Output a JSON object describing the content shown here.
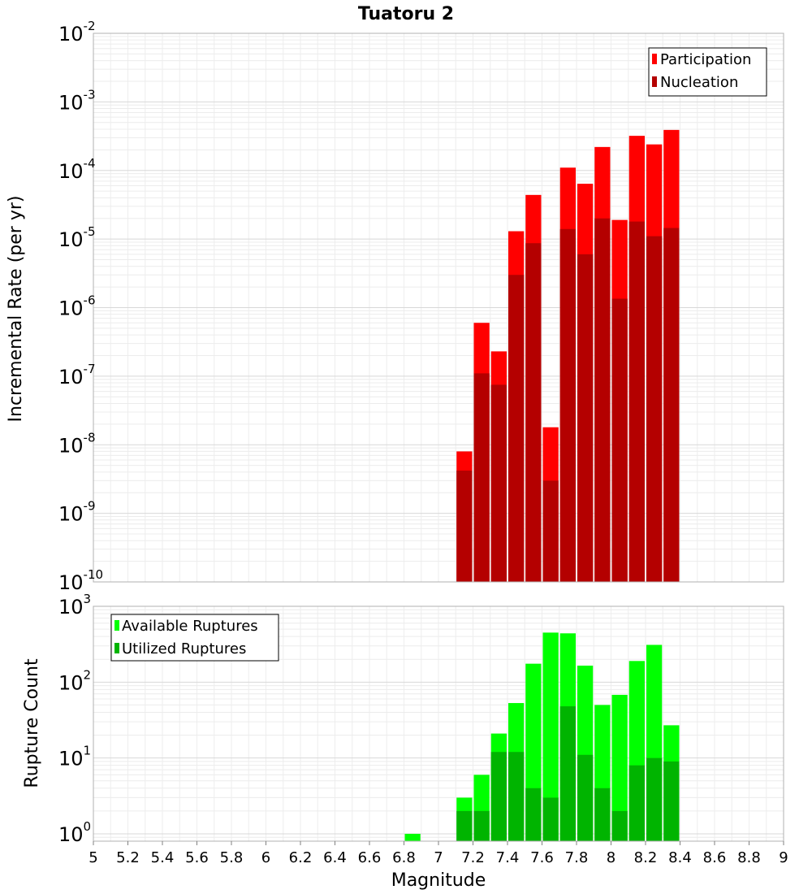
{
  "chart_data": [
    {
      "type": "bar",
      "title": "Tuatoru 2",
      "ylabel": "Incremental Rate (per yr)",
      "xlabel": "",
      "y_scale": "log",
      "ylim": [
        1e-10,
        0.01
      ],
      "xlim": [
        5,
        9
      ],
      "y_tick_labels": [
        "10^-10",
        "10^-9",
        "10^-8",
        "10^-7",
        "10^-6",
        "10^-5",
        "10^-4",
        "10^-3",
        "10^-2"
      ],
      "legend": {
        "placement": "top-right",
        "entries": [
          "Participation",
          "Nucleation"
        ]
      },
      "colors": {
        "Participation": "#ff0000",
        "Nucleation": "#b40000"
      },
      "x": [
        7.15,
        7.25,
        7.35,
        7.45,
        7.55,
        7.65,
        7.75,
        7.85,
        7.95,
        8.05,
        8.15,
        8.25,
        8.35
      ],
      "series": [
        {
          "name": "Participation",
          "values": [
            8e-09,
            6e-07,
            2.3e-07,
            1.3e-05,
            4.4e-05,
            1.8e-08,
            0.00011,
            6.4e-05,
            0.00022,
            1.9e-05,
            0.00032,
            0.00024,
            0.00039
          ]
        },
        {
          "name": "Nucleation",
          "values": [
            4.2e-09,
            1.1e-07,
            7.5e-08,
            3e-06,
            8.7e-06,
            3e-09,
            1.4e-05,
            6e-06,
            2e-05,
            1.35e-06,
            1.8e-05,
            1.1e-05,
            1.45e-05
          ]
        }
      ]
    },
    {
      "type": "bar",
      "title": "",
      "ylabel": "Rupture Count",
      "xlabel": "Magnitude",
      "y_scale": "log",
      "ylim": [
        0.8,
        1000
      ],
      "xlim": [
        5,
        9
      ],
      "y_tick_labels": [
        "10^0",
        "10^1",
        "10^2",
        "10^3"
      ],
      "x_tick_labels": [
        "5",
        "5.2",
        "5.4",
        "5.6",
        "5.8",
        "6",
        "6.2",
        "6.4",
        "6.6",
        "6.8",
        "7",
        "7.2",
        "7.4",
        "7.6",
        "7.8",
        "8",
        "8.2",
        "8.4",
        "8.6",
        "8.8",
        "9"
      ],
      "legend": {
        "placement": "top-left",
        "entries": [
          "Available Ruptures",
          "Utilized Ruptures"
        ]
      },
      "colors": {
        "Available Ruptures": "#00ff00",
        "Utilized Ruptures": "#00b400"
      },
      "x": [
        6.85,
        7.15,
        7.25,
        7.35,
        7.45,
        7.55,
        7.65,
        7.75,
        7.85,
        7.95,
        8.05,
        8.15,
        8.25,
        8.35
      ],
      "series": [
        {
          "name": "Available Ruptures",
          "values": [
            1,
            3,
            6,
            21,
            53,
            175,
            450,
            440,
            165,
            50,
            68,
            190,
            310,
            27
          ]
        },
        {
          "name": "Utilized Ruptures",
          "values": [
            0,
            2,
            2,
            12,
            12,
            4,
            3,
            48,
            11,
            4,
            2,
            8,
            10,
            9
          ]
        }
      ]
    }
  ]
}
